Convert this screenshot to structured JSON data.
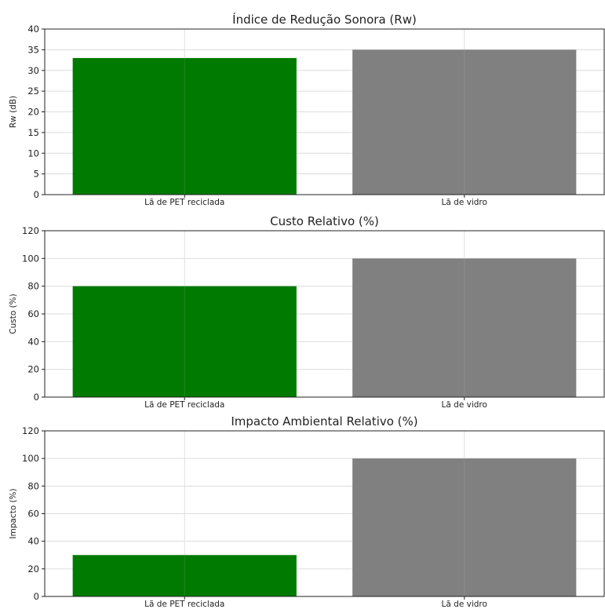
{
  "colors": {
    "PET": "#007a00",
    "vidro": "#808080"
  },
  "chart_data": [
    {
      "type": "bar",
      "title": "Índice de Redução Sonora (Rw)",
      "ylabel": "Rw (dB)",
      "categories": [
        "Lã de PET reciclada",
        "Lã de vidro"
      ],
      "values": [
        33,
        35
      ],
      "ylim": [
        0,
        40
      ],
      "yticks": [
        0,
        5,
        10,
        15,
        20,
        25,
        30,
        35,
        40
      ],
      "grid": true,
      "legend": "none"
    },
    {
      "type": "bar",
      "title": "Custo Relativo (%)",
      "ylabel": "Custo (%)",
      "categories": [
        "Lã de PET reciclada",
        "Lã de vidro"
      ],
      "values": [
        80,
        100
      ],
      "ylim": [
        0,
        120
      ],
      "yticks": [
        0,
        20,
        40,
        60,
        80,
        100,
        120
      ],
      "grid": true,
      "legend": "none"
    },
    {
      "type": "bar",
      "title": "Impacto Ambiental Relativo (%)",
      "ylabel": "Impacto (%)",
      "categories": [
        "Lã de PET reciclada",
        "Lã de vidro"
      ],
      "values": [
        30,
        100
      ],
      "ylim": [
        0,
        120
      ],
      "yticks": [
        0,
        20,
        40,
        60,
        80,
        100,
        120
      ],
      "grid": true,
      "legend": "none"
    }
  ]
}
